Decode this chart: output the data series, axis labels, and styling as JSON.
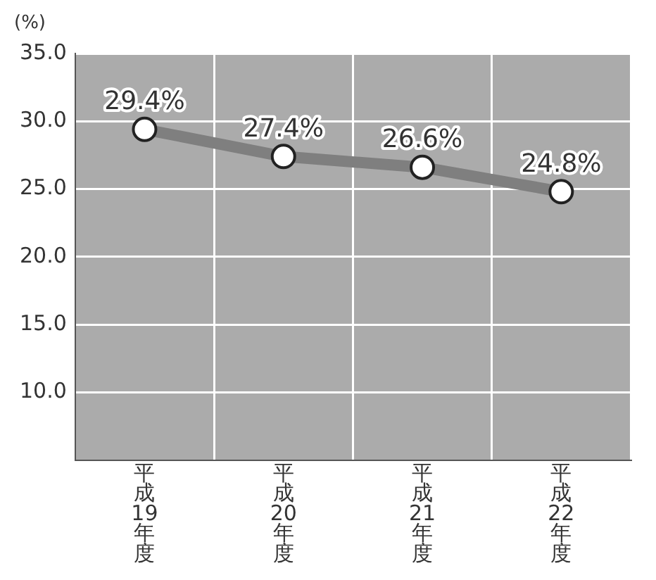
{
  "chart_data": {
    "type": "line",
    "ylabel": "(%)",
    "categories": [
      "平成19年度",
      "平成20年度",
      "平成21年度",
      "平成22年度"
    ],
    "series": [
      {
        "color": "#7f7f7f",
        "values": [
          29.4,
          27.4,
          26.6,
          24.8
        ],
        "value_labels": [
          "29.4%",
          "27.4%",
          "26.6%",
          "24.8%"
        ]
      }
    ],
    "ylim": [
      5,
      35
    ],
    "yticks": [
      {
        "value": 10,
        "label": "10.0"
      },
      {
        "value": 15,
        "label": "15.0"
      },
      {
        "value": 20,
        "label": "20.0"
      },
      {
        "value": 25,
        "label": "25.0"
      },
      {
        "value": 30,
        "label": "30.0"
      },
      {
        "value": 35,
        "label": "35.0"
      }
    ],
    "grid": true,
    "legend": false,
    "marker": "circle",
    "line_style": "solid"
  }
}
